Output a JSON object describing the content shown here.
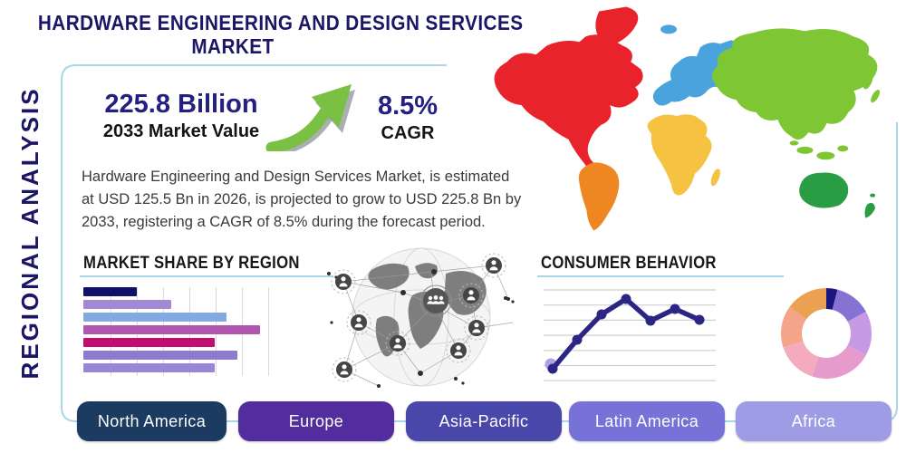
{
  "header": {
    "title_line1": "HARDWARE ENGINEERING AND DESIGN SERVICES",
    "title_line2": "MARKET"
  },
  "side_label": "REGIONAL ANALYSIS",
  "stats": {
    "market_value": "225.8 Billion",
    "market_value_label": "2033 Market Value",
    "cagr_value": "8.5%",
    "cagr_label": "CAGR"
  },
  "description": {
    "lines": [
      "Hardware Engineering and Design Services Market, is estimated",
      "at USD 125.5 Bn in 2026, is projected to grow to USD 225.8 Bn by",
      "2033, registering a CAGR of 8.5% during the forecast period."
    ]
  },
  "colors": {
    "title_navy": "#1c1666",
    "stat_navy": "#232082",
    "body_text": "#3a3a3a",
    "accent_line": "#a9d6e8",
    "arrow_green": "#7ac143",
    "arrow_shadow": "#8e9499"
  },
  "map": {
    "regions": [
      {
        "name": "North America",
        "color": "#e8232b"
      },
      {
        "name": "South America",
        "color": "#ee8722"
      },
      {
        "name": "Europe",
        "color": "#4aa3dc"
      },
      {
        "name": "Africa",
        "color": "#f5c242"
      },
      {
        "name": "Asia",
        "color": "#7ec633"
      },
      {
        "name": "Australia",
        "color": "#2a9d44"
      }
    ]
  },
  "chart_data": [
    {
      "type": "bar",
      "title": "MARKET SHARE BY REGION",
      "orientation": "horizontal",
      "values": [
        28,
        46,
        75,
        93,
        69,
        81,
        69
      ],
      "xlim": [
        0,
        100
      ],
      "grid": "vertical",
      "colors": [
        "#10106b",
        "#a289d6",
        "#83a9e3",
        "#b156ae",
        "#c40d71",
        "#8d7ad1",
        "#9787d6"
      ]
    },
    {
      "type": "line",
      "title": "CONSUMER BEHAVIOR",
      "x": [
        1,
        2,
        3,
        4,
        5,
        6,
        7
      ],
      "values": [
        13,
        45,
        73,
        90,
        66,
        79,
        67
      ],
      "ylim": [
        0,
        100
      ],
      "grid": "horizontal",
      "line_color": "#2b2583",
      "point_color": "#2b2583",
      "accent_dot_color": "#b49fe0"
    },
    {
      "type": "donut",
      "values": [
        4,
        13,
        16,
        22,
        15,
        15,
        15
      ],
      "colors": [
        "#1b1680",
        "#8672d3",
        "#c69ae3",
        "#e79bcd",
        "#f4abbe",
        "#f3a489",
        "#eba152"
      ],
      "legend": false
    }
  ],
  "region_buttons": [
    {
      "label": "North America",
      "color": "#1b3b61"
    },
    {
      "label": "Europe",
      "color": "#532d9e"
    },
    {
      "label": "Asia-Pacific",
      "color": "#4a47ab"
    },
    {
      "label": "Latin America",
      "color": "#7672d8"
    },
    {
      "label": "Africa",
      "color": "#9f9ce6"
    }
  ]
}
